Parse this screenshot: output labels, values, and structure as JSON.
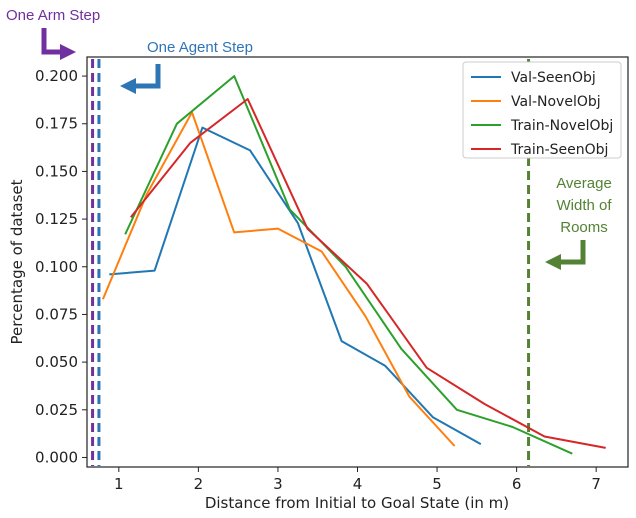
{
  "chart_data": {
    "type": "line",
    "title": "",
    "xlabel": "Distance from Initial to Goal State (in m)",
    "ylabel": "Percentage of dataset",
    "xlim": [
      0.6,
      7.4
    ],
    "ylim": [
      -0.005,
      0.21
    ],
    "xticks": [
      1,
      2,
      3,
      4,
      5,
      6,
      7
    ],
    "yticks": [
      0.0,
      0.025,
      0.05,
      0.075,
      0.1,
      0.125,
      0.15,
      0.175,
      0.2
    ],
    "ytick_labels": [
      "0.000",
      "0.025",
      "0.050",
      "0.075",
      "0.100",
      "0.125",
      "0.150",
      "0.175",
      "0.200"
    ],
    "grid": false,
    "legend_position": "top-right",
    "series": [
      {
        "name": "Val-SeenObj",
        "color": "#1f77b4",
        "x": [
          0.88,
          1.45,
          2.05,
          2.65,
          3.25,
          3.8,
          4.35,
          4.95,
          5.55
        ],
        "y": [
          0.096,
          0.098,
          0.173,
          0.161,
          0.123,
          0.061,
          0.048,
          0.021,
          0.007
        ]
      },
      {
        "name": "Val-NovelObj",
        "color": "#ff7f0e",
        "x": [
          0.8,
          1.35,
          1.92,
          2.45,
          3.0,
          3.55,
          4.1,
          4.65,
          5.22
        ],
        "y": [
          0.083,
          0.138,
          0.181,
          0.118,
          0.12,
          0.108,
          0.074,
          0.032,
          0.006
        ]
      },
      {
        "name": "Train-NovelObj",
        "color": "#2ca02c",
        "x": [
          1.08,
          1.73,
          2.45,
          3.15,
          3.85,
          4.55,
          5.25,
          5.95,
          6.7
        ],
        "y": [
          0.117,
          0.175,
          0.2,
          0.13,
          0.1,
          0.057,
          0.025,
          0.016,
          0.002
        ]
      },
      {
        "name": "Train-SeenObj",
        "color": "#d62728",
        "x": [
          1.15,
          1.9,
          2.62,
          3.37,
          4.12,
          4.87,
          5.6,
          6.35,
          7.12
        ],
        "y": [
          0.126,
          0.165,
          0.188,
          0.12,
          0.091,
          0.047,
          0.028,
          0.011,
          0.005
        ]
      }
    ],
    "vlines": [
      {
        "label": "One Arm Step",
        "x": 0.67,
        "color": "#7030a0"
      },
      {
        "label": "One Agent Step",
        "x": 0.75,
        "color": "#2e75b6"
      },
      {
        "label": "Average Width of Rooms",
        "x": 6.15,
        "color": "#548235"
      }
    ],
    "annotations": [
      {
        "text": "One Arm Step",
        "color": "#7030a0"
      },
      {
        "text": "One Agent Step",
        "color": "#2e75b6"
      },
      {
        "text_lines": [
          "Average",
          "Width of",
          "Rooms"
        ],
        "color": "#548235"
      }
    ]
  }
}
